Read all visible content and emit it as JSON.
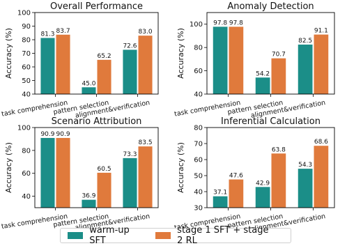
{
  "colors": {
    "sft": "#1b8e88",
    "rl": "#e07a3c"
  },
  "legend": {
    "sft_label": "warm-up SFT",
    "rl_label": "stage 1 SFT + stage 2 RL"
  },
  "chart_data": [
    {
      "type": "bar",
      "title": "Overall Performance",
      "ylabel": "Accuracy (%)",
      "categories": [
        "task comprehension",
        "pattern selection",
        "alignment&verification"
      ],
      "ylim": [
        40,
        100
      ],
      "yticks": [
        40,
        50,
        60,
        70,
        80,
        90,
        100
      ],
      "series": [
        {
          "name": "warm-up SFT",
          "values": [
            81.3,
            45.0,
            72.6
          ]
        },
        {
          "name": "stage 1 SFT + stage 2 RL",
          "values": [
            83.7,
            65.2,
            83.0
          ]
        }
      ]
    },
    {
      "type": "bar",
      "title": "Anomaly Detection",
      "ylabel": "Accuracy (%)",
      "categories": [
        "task comprehension",
        "pattern selection",
        "alignment&verification"
      ],
      "ylim": [
        40,
        110
      ],
      "yticks": [
        40,
        60,
        80,
        100
      ],
      "series": [
        {
          "name": "warm-up SFT",
          "values": [
            97.8,
            54.2,
            82.5
          ]
        },
        {
          "name": "stage 1 SFT + stage 2 RL",
          "values": [
            97.8,
            70.7,
            91.1
          ]
        }
      ]
    },
    {
      "type": "bar",
      "title": "Scenario Attribution",
      "ylabel": "Accuracy (%)",
      "categories": [
        "task comprehension",
        "pattern selection",
        "alignment&verification"
      ],
      "ylim": [
        30,
        100
      ],
      "yticks": [
        40,
        60,
        80,
        100
      ],
      "series": [
        {
          "name": "warm-up SFT",
          "values": [
            90.9,
            36.9,
            73.3
          ]
        },
        {
          "name": "stage 1 SFT + stage 2 RL",
          "values": [
            90.9,
            60.5,
            83.5
          ]
        }
      ]
    },
    {
      "type": "bar",
      "title": "Inferential Calculation",
      "ylabel": "Accuracy (%)",
      "categories": [
        "task comprehension",
        "pattern selection",
        "alignment&verification"
      ],
      "ylim": [
        30,
        80
      ],
      "yticks": [
        30,
        40,
        50,
        60,
        70,
        80
      ],
      "series": [
        {
          "name": "warm-up SFT",
          "values": [
            37.1,
            42.9,
            54.3
          ]
        },
        {
          "name": "stage 1 SFT + stage 2 RL",
          "values": [
            47.6,
            63.8,
            68.6
          ]
        }
      ]
    }
  ]
}
